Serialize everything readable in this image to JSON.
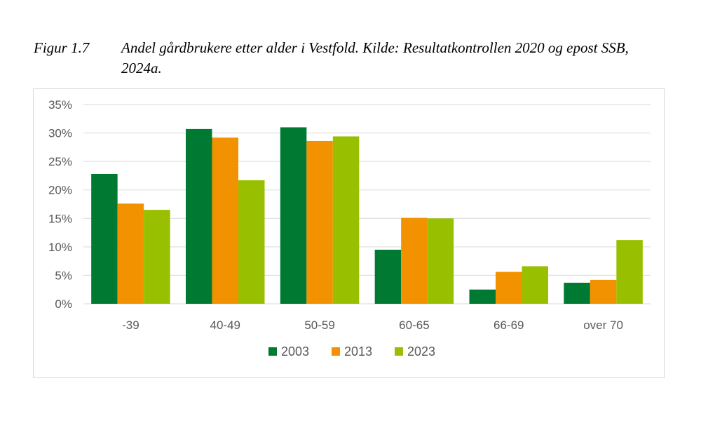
{
  "caption": {
    "label": "Figur 1.7",
    "title": "Andel gårdbrukere etter alder i Vestfold. Kilde: Resultatkontrollen 2020 og epost SSB, 2024a."
  },
  "colors": {
    "2003": "#007a33",
    "2013": "#f39200",
    "2023": "#99c000",
    "grid": "#d9d9d9",
    "axis_text": "#595959"
  },
  "chart_data": {
    "type": "bar",
    "categories": [
      "-39",
      "40-49",
      "50-59",
      "60-65",
      "66-69",
      "over 70"
    ],
    "series": [
      {
        "name": "2003",
        "values": [
          22.8,
          30.7,
          31.0,
          9.5,
          2.5,
          3.7
        ]
      },
      {
        "name": "2013",
        "values": [
          17.6,
          29.2,
          28.6,
          15.1,
          5.6,
          4.2
        ]
      },
      {
        "name": "2023",
        "values": [
          16.5,
          21.7,
          29.4,
          15.0,
          6.6,
          11.2
        ]
      }
    ],
    "yticks": [
      "0%",
      "5%",
      "10%",
      "15%",
      "20%",
      "25%",
      "30%",
      "35%"
    ],
    "ylim": [
      0,
      35
    ],
    "ystep": 5,
    "grid": true,
    "legend_position": "bottom"
  }
}
